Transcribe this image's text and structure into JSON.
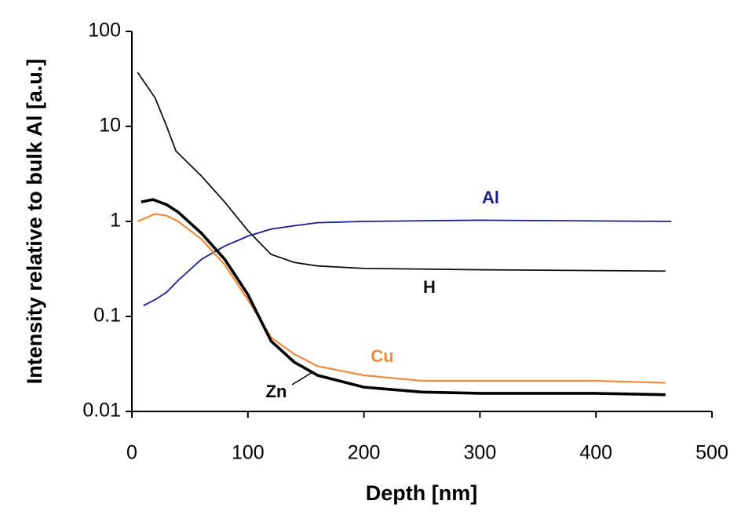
{
  "chart_data": {
    "type": "line",
    "x_label": "Depth [nm]",
    "y_label": "Intensity relative to bulk Al [a.u.]",
    "xlim": [
      0,
      500
    ],
    "xticks": [
      0,
      100,
      200,
      300,
      400,
      500
    ],
    "ylim": [
      0.01,
      100
    ],
    "yticks": [
      0.01,
      0.1,
      1,
      10,
      100
    ],
    "y_scale": "log",
    "grid": false,
    "series": [
      {
        "name": "H",
        "color": "#111111",
        "x": [
          5,
          20,
          30,
          38,
          60,
          80,
          100,
          120,
          140,
          160,
          200,
          300,
          460
        ],
        "values": [
          37,
          20,
          10,
          5.5,
          3,
          1.6,
          0.8,
          0.45,
          0.37,
          0.34,
          0.32,
          0.31,
          0.3
        ]
      },
      {
        "name": "Al",
        "color": "#1c1c8c",
        "x": [
          10,
          20,
          30,
          40,
          60,
          80,
          100,
          120,
          140,
          160,
          200,
          300,
          465
        ],
        "values": [
          0.13,
          0.15,
          0.18,
          0.24,
          0.4,
          0.55,
          0.7,
          0.83,
          0.9,
          0.97,
          1.0,
          1.03,
          1.0
        ]
      },
      {
        "name": "Cu",
        "color": "#ef8a3c",
        "x": [
          5,
          20,
          30,
          40,
          60,
          80,
          100,
          120,
          140,
          160,
          200,
          250,
          300,
          400,
          460
        ],
        "values": [
          1.0,
          1.2,
          1.15,
          1.0,
          0.65,
          0.35,
          0.15,
          0.06,
          0.04,
          0.03,
          0.024,
          0.021,
          0.021,
          0.021,
          0.02
        ]
      },
      {
        "name": "Zn",
        "color": "#000000",
        "x": [
          8,
          18,
          30,
          40,
          60,
          80,
          100,
          120,
          140,
          160,
          200,
          250,
          300,
          400,
          460
        ],
        "values": [
          1.6,
          1.7,
          1.5,
          1.25,
          0.75,
          0.4,
          0.17,
          0.055,
          0.033,
          0.024,
          0.018,
          0.016,
          0.0155,
          0.0155,
          0.015
        ]
      }
    ]
  }
}
